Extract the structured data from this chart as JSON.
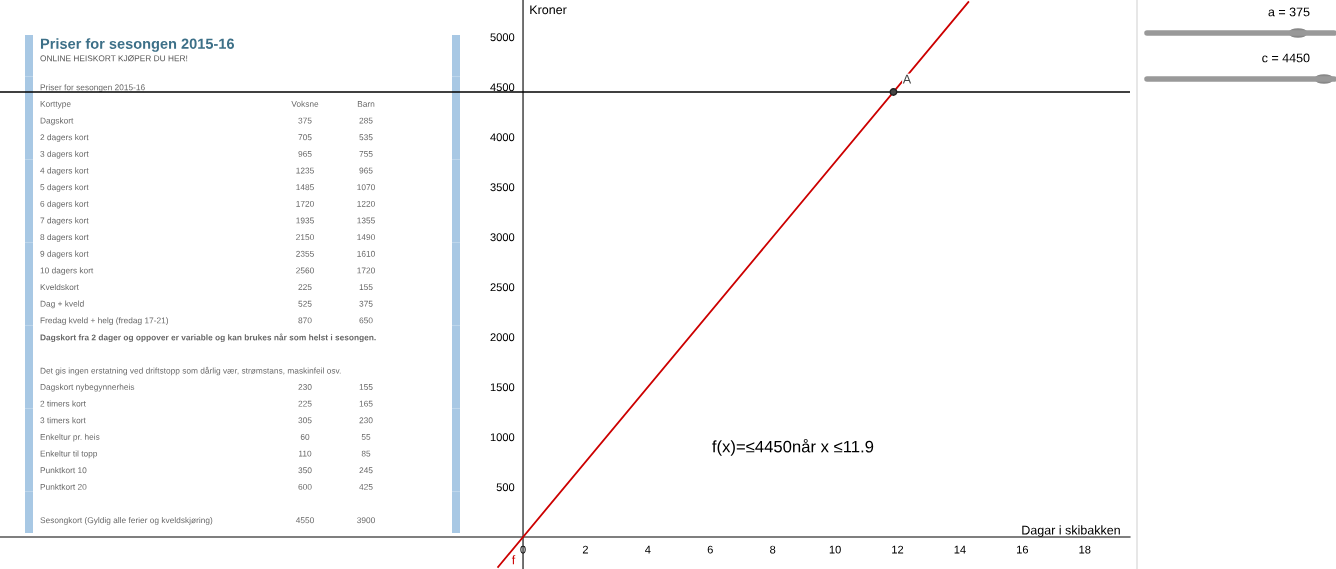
{
  "chart_data": [
    {
      "type": "other",
      "title": "Priser for sesongen 2015-16",
      "subtitle": "ONLINE HEISKORT KJØPER DU HER!",
      "annotations": [
        "Priser for sesongen 2015-16",
        "Korttype\tVoksne\tBarn",
        "Dagskort\t375\t285",
        "2 dagers kort\t705\t535",
        "3 dagers kort\t965\t755",
        "4 dagers kort\t1235\t965",
        "5 dagers kort\t1485\t1070",
        "6 dagers kort\t1720\t1220",
        "7 dagers kort\t1935\t1355",
        "8 dagers kort\t2150\t1490",
        "9 dagers kort\t2355\t1610",
        "10 dagers kort\t2560\t1720",
        "Kveldskort\t225\t155",
        "Dag + kveld\t525\t375",
        "Fredag kveld + helg (fredag 17-21)\t870\t650",
        "Dagskort fra 2 dager og oppover er variable og kan brukes når som helst i sesongen.",
        "Det gis ingen erstatning ved driftstopp som dårlig vær, strømstans, maskinfeil osv.",
        "Dagskort nybegynnerheis\t230\t155",
        "2 timers kort\t225\t165",
        "3 timers kort\t305\t230",
        "Enkeltur pr. heis\t60\t55",
        "Enkeltur til topp\t110\t85",
        "Punktkort 10\t350\t245",
        "Punktkort 20\t600\t425",
        "Sesongkort (Gyldig alle ferier og kveldskjøring)\t4550\t3900"
      ]
    },
    {
      "type": "line",
      "xlabel": "Dagar i skibakken",
      "ylabel": "Kroner",
      "xlim": [
        -16.76,
        19.45
      ],
      "ylim": [
        -320,
        5370
      ],
      "xticks": [
        {
          "value": 0,
          "label": "0"
        },
        2,
        4,
        6,
        8,
        10,
        12,
        14,
        16,
        18
      ],
      "yticks": [
        500,
        1000,
        1500,
        2000,
        2500,
        3000,
        3500,
        4000,
        4500,
        5000
      ],
      "grid": false,
      "legend": false,
      "series": [
        {
          "name": "f",
          "type": "line",
          "color": "#cc0000",
          "x": [
            -0.8,
            14.27
          ],
          "values": [
            -300,
            5350
          ]
        },
        {
          "name": "A",
          "type": "scatter",
          "color": "#444444",
          "x": [
            11.87
          ],
          "values": [
            4450
          ]
        }
      ],
      "ref_lines": [
        {
          "axis": "y",
          "value": 4450,
          "color": "#000000"
        }
      ],
      "annotations": [
        "f(x)=≤4450når x ≤11.9",
        "a = 375",
        "c = 4450"
      ]
    }
  ]
}
